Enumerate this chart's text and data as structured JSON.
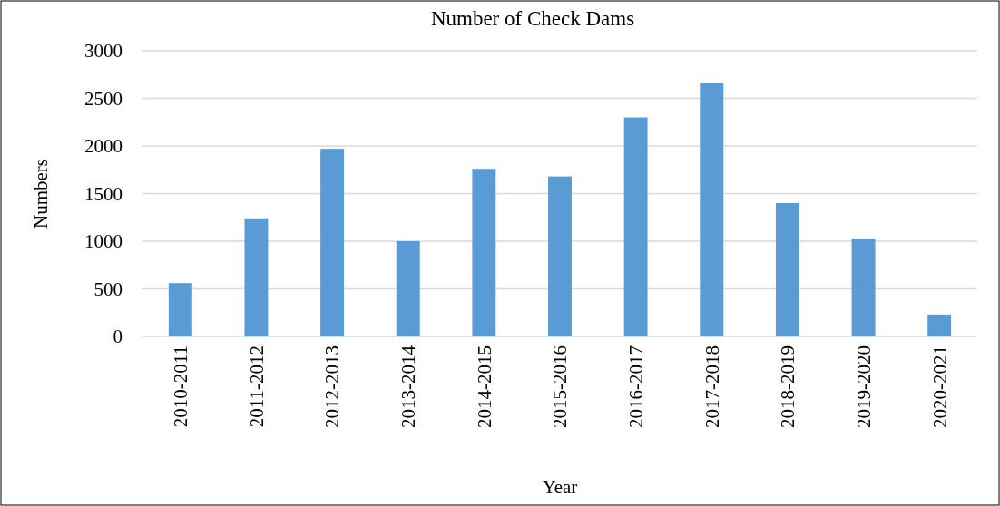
{
  "chart_data": {
    "type": "bar",
    "title": "Number of Check Dams",
    "xlabel": "Year",
    "ylabel": "Numbers",
    "categories": [
      "2010-2011",
      "2011-2012",
      "2012-2013",
      "2013-2014",
      "2014-2015",
      "2015-2016",
      "2016-2017",
      "2017-2018",
      "2018-2019",
      "2019-2020",
      "2020-2021"
    ],
    "values": [
      560,
      1240,
      1970,
      1000,
      1760,
      1680,
      2300,
      2660,
      1400,
      1020,
      230
    ],
    "color": "#5b9bd5",
    "ylim": [
      0,
      3000
    ],
    "yticks": [
      0,
      500,
      1000,
      1500,
      2000,
      2500,
      3000
    ],
    "grid": "y"
  }
}
